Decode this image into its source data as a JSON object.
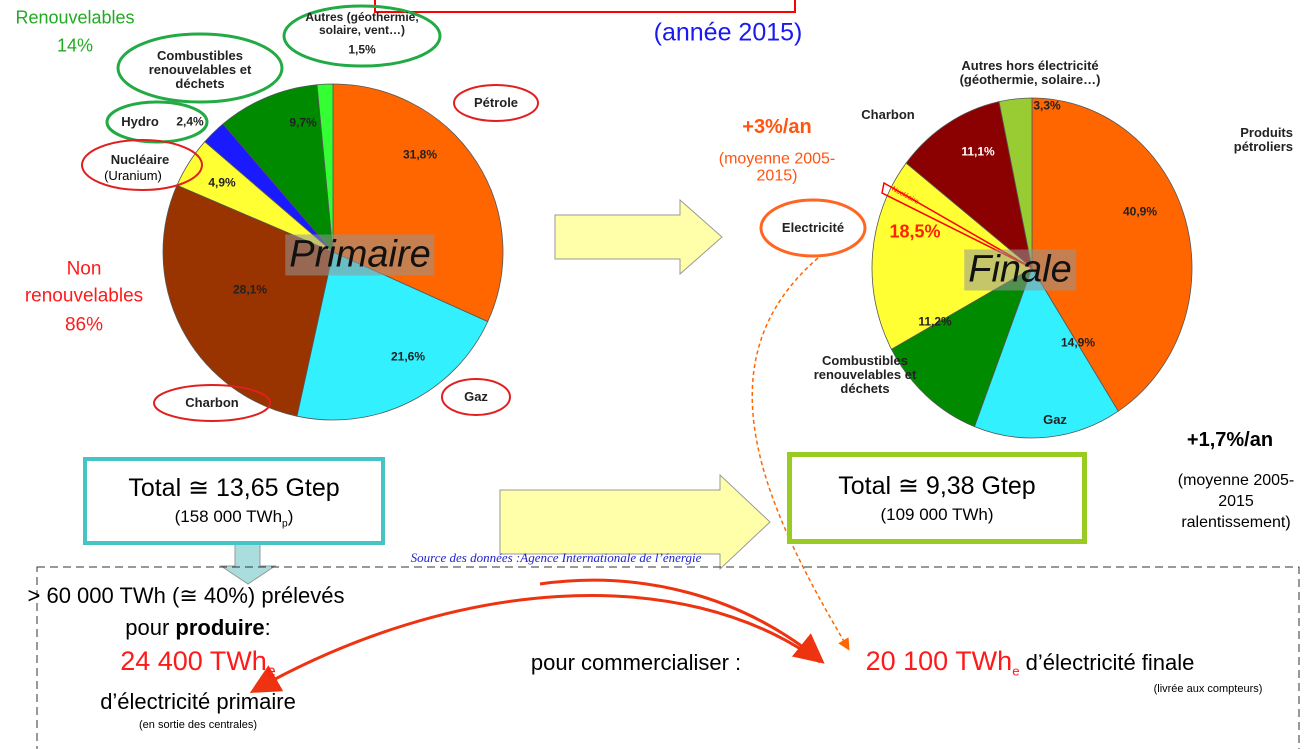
{
  "chart_data": [
    {
      "type": "pie",
      "title": "Primaire",
      "categories": [
        "Pétrole",
        "Gaz",
        "Charbon",
        "Nucléaire",
        "Hydro",
        "Combustibles renouvelables et déchets",
        "Autres (géothermie, solaire, vent…)"
      ],
      "values": [
        31.8,
        21.6,
        28.1,
        4.9,
        2.4,
        9.7,
        1.5
      ],
      "value_labels": [
        "31,8%",
        "21,6%",
        "28,1%",
        "4,9%",
        "2,4%",
        "9,7%",
        "1,5%"
      ],
      "colors": [
        "#ff6600",
        "#33f0ff",
        "#993300",
        "#ffff33",
        "#1a1aff",
        "#008a00",
        "#33ff33"
      ],
      "annotations": [
        "(Uranium)"
      ]
    },
    {
      "type": "pie",
      "title": "Finale",
      "categories": [
        "Produits pétroliers",
        "Gaz",
        "Combustibles renouvelables et déchets",
        "Electricité",
        "Charbon",
        "Autres hors électricité (géothermie, solaire…)"
      ],
      "values": [
        40.9,
        14.9,
        11.2,
        18.5,
        11.1,
        3.3
      ],
      "value_labels": [
        "40,9%",
        "14,9%",
        "11,2%",
        "18,5%",
        "11,1%",
        "3,3%"
      ],
      "colors": [
        "#ff6600",
        "#33f0ff",
        "#008a00",
        "#ffff33",
        "#8b0000",
        "#99cc33"
      ],
      "annotations": [
        "Nucléaire"
      ]
    }
  ],
  "header": {
    "subtitle": "(année 2015)"
  },
  "shares": {
    "renewables": "Renouvelables",
    "renewables_share": "14%",
    "non_renewables": "Non renouvelables",
    "non_renewables_share": "86%"
  },
  "electricity_growth": {
    "rate": "+3%/an",
    "period": "(moyenne 2005-2015)"
  },
  "totals": {
    "primary": {
      "main": "Total ≅ 13,65 Gtep",
      "detail": "(158 000 TWh",
      "sub": "p",
      "close": ")"
    },
    "final": {
      "main": "Total ≅ 9,38 Gtep",
      "detail": "(109 000 TWh)"
    },
    "final_growth": {
      "rate": "+1,7%/an",
      "note": "(moyenne 2005-2015 ralentissement)"
    }
  },
  "source": "Source des données :Agence Internationale de l’énergie",
  "electricity": {
    "withdrawn": "> 60 000 TWh (≅ 40%) prélevés",
    "produce_pre": "pour ",
    "produce": "produire",
    "produce_post": ":",
    "primary_value": "24 400 TWh",
    "primary_sub": "e",
    "primary_label": "d’électricité primaire",
    "primary_note": "(en sortie des centrales)",
    "sell": "pour commercialiser :",
    "final_value": "20 100 TWh",
    "final_sub": "e",
    "final_label": " d’électricité finale",
    "final_note": "(livrée aux compteurs)"
  }
}
